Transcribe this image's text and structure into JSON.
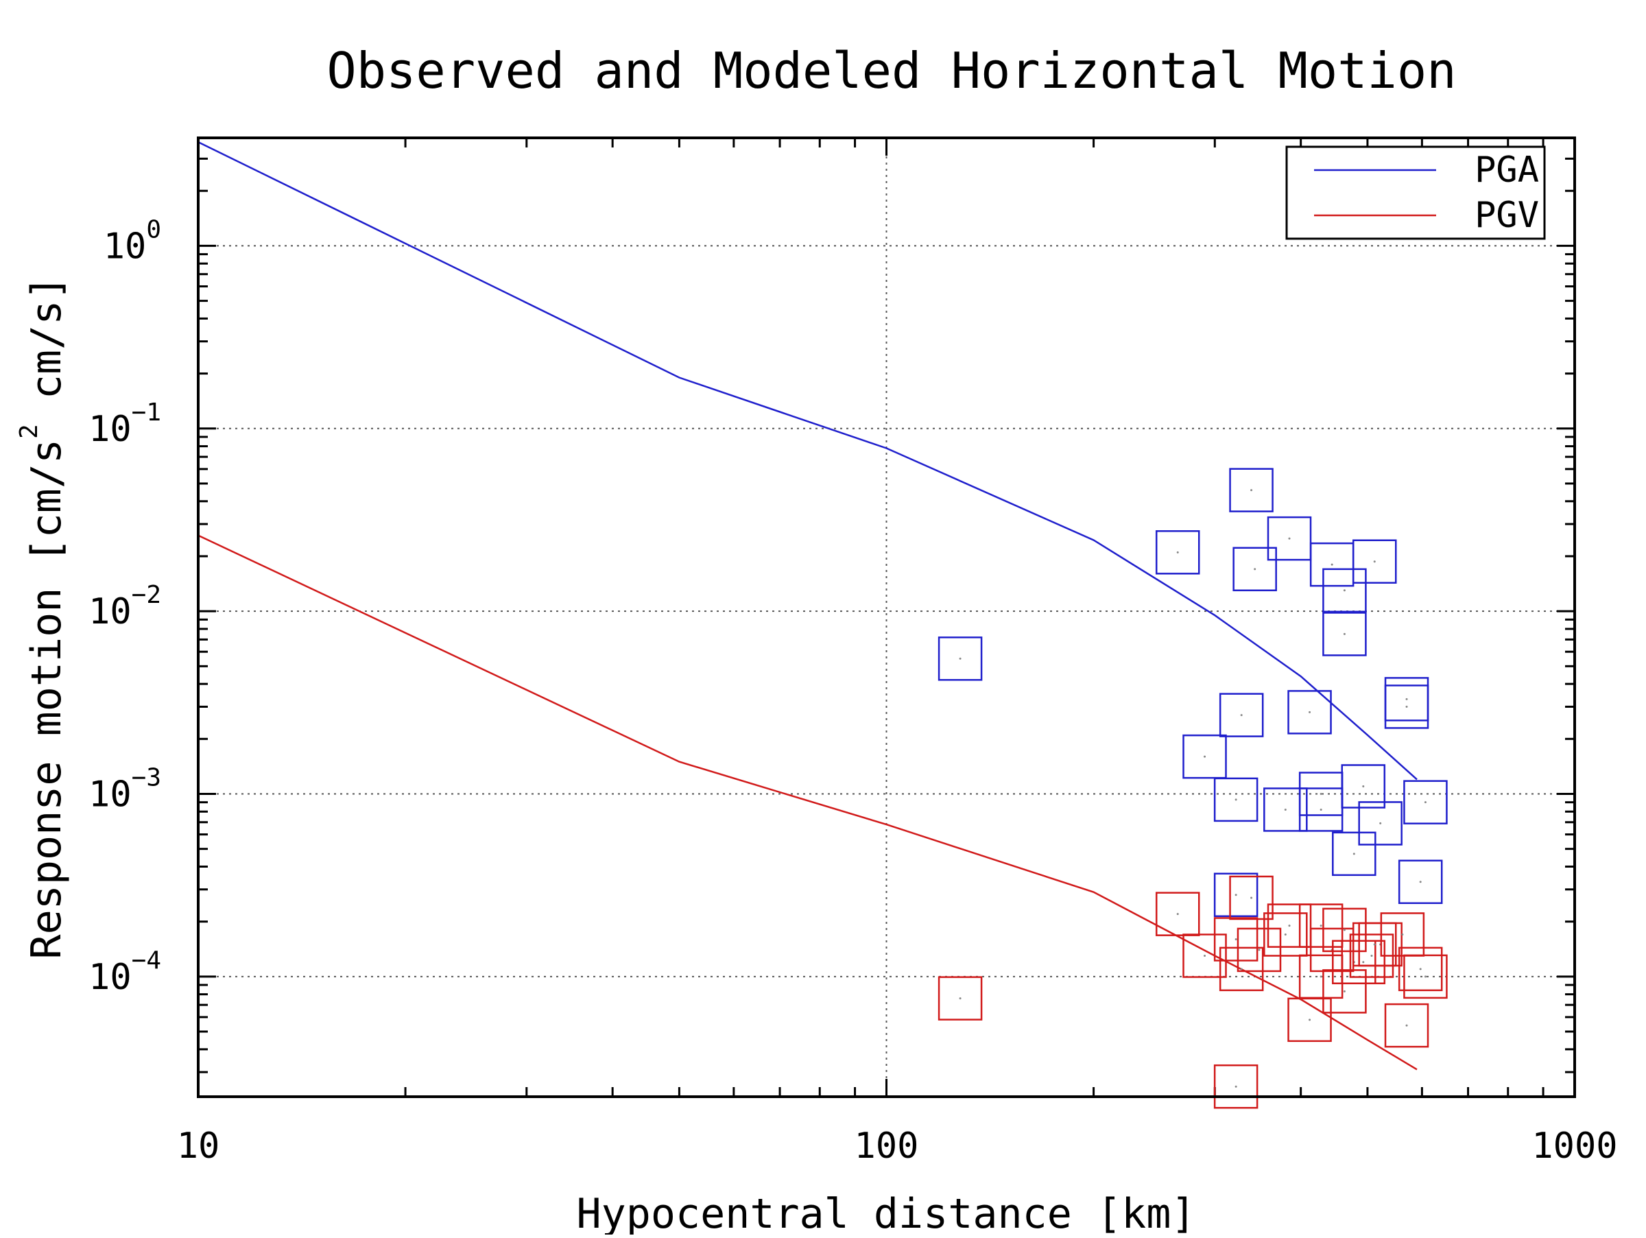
{
  "chart_data": {
    "type": "scatter",
    "title": "Observed and Modeled Horizontal Motion",
    "xlabel": "Hypocentral distance [km]",
    "ylabel": {
      "prefix": "Response motion [cm/s",
      "sup": "2",
      "suffix": "  cm/s]"
    },
    "x_scale": "log",
    "y_scale": "log",
    "xlim": [
      10,
      1000
    ],
    "ylim": [
      2.2e-05,
      3.9
    ],
    "x_ticks": [
      {
        "value": 10,
        "label": "10"
      },
      {
        "value": 100,
        "label": "100"
      },
      {
        "value": 1000,
        "label": "1000"
      }
    ],
    "y_ticks": [
      {
        "value": 1,
        "base": "10",
        "exp": "0"
      },
      {
        "value": 0.1,
        "base": "10",
        "exp": "−1"
      },
      {
        "value": 0.01,
        "base": "10",
        "exp": "−2"
      },
      {
        "value": 0.001,
        "base": "10",
        "exp": "−3"
      },
      {
        "value": 0.0001,
        "base": "10",
        "exp": "−4"
      }
    ],
    "grid": true,
    "legend_position": "top-right",
    "series": [
      {
        "name": "PGA",
        "color": "#1f1fcc",
        "line": [
          [
            10,
            3.7
          ],
          [
            50,
            0.19
          ],
          [
            100,
            0.078
          ],
          [
            200,
            0.0245
          ],
          [
            300,
            0.0095
          ],
          [
            400,
            0.0044
          ],
          [
            500,
            0.0021
          ],
          [
            590,
            0.0012
          ]
        ],
        "points": [
          [
            128,
            0.0055
          ],
          [
            265,
            0.021
          ],
          [
            290,
            0.0016
          ],
          [
            322,
            0.00093
          ],
          [
            322,
            0.00028
          ],
          [
            328,
            0.0027
          ],
          [
            339,
            0.046
          ],
          [
            343,
            0.017
          ],
          [
            385,
            0.025
          ],
          [
            380,
            0.00082
          ],
          [
            412,
            0.0028
          ],
          [
            428,
            0.001
          ],
          [
            428,
            0.00082
          ],
          [
            444,
            0.018
          ],
          [
            463,
            0.013
          ],
          [
            463,
            0.0075
          ],
          [
            478,
            0.00047
          ],
          [
            493,
            0.0011
          ],
          [
            512,
            0.0187
          ],
          [
            522,
            0.00069
          ],
          [
            570,
            0.003
          ],
          [
            570,
            0.0033
          ],
          [
            607,
            0.0009
          ],
          [
            597,
            0.00033
          ]
        ]
      },
      {
        "name": "PGV",
        "color": "#d11a1a",
        "line": [
          [
            10,
            0.026
          ],
          [
            50,
            0.0015
          ],
          [
            100,
            0.00068
          ],
          [
            200,
            0.00029
          ],
          [
            300,
            0.00013
          ],
          [
            400,
            7.5e-05
          ],
          [
            500,
            4.5e-05
          ],
          [
            590,
            3.1e-05
          ]
        ],
        "points": [
          [
            128,
            7.6e-05
          ],
          [
            265,
            0.00022
          ],
          [
            290,
            0.00013
          ],
          [
            322,
            0.00016
          ],
          [
            322,
            2.5e-05
          ],
          [
            328,
            0.00011
          ],
          [
            339,
            0.00027
          ],
          [
            348,
            0.00014
          ],
          [
            380,
            0.00017
          ],
          [
            385,
            0.00019
          ],
          [
            412,
            5.8e-05
          ],
          [
            428,
            0.00019
          ],
          [
            428,
            0.0001
          ],
          [
            444,
            0.00014
          ],
          [
            463,
            0.00018
          ],
          [
            463,
            8.3e-05
          ],
          [
            478,
            0.00012
          ],
          [
            493,
            0.00012
          ],
          [
            507,
            0.00013
          ],
          [
            512,
            0.00015
          ],
          [
            522,
            0.00015
          ],
          [
            562,
            0.00017
          ],
          [
            570,
            5.4e-05
          ],
          [
            597,
            0.00011
          ],
          [
            607,
            0.0001
          ]
        ]
      }
    ]
  }
}
